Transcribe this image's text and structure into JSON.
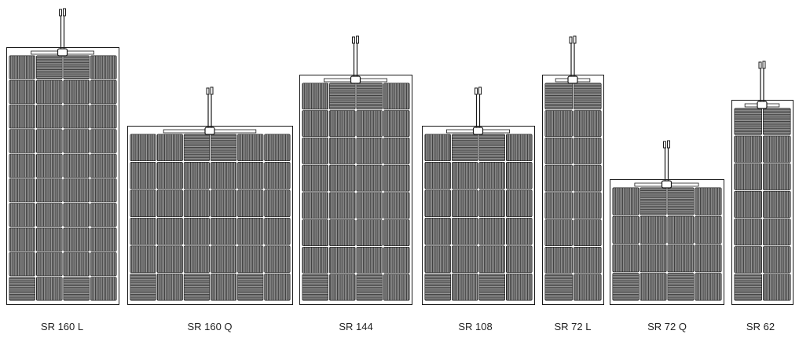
{
  "panels": [
    {
      "id": "sr-160-l",
      "label": "SR 160 L",
      "columns": 4,
      "rows": 10
    },
    {
      "id": "sr-160-q",
      "label": "SR 160 Q",
      "columns": 6,
      "rows": 6
    },
    {
      "id": "sr-144",
      "label": "SR 144",
      "columns": 4,
      "rows": 8
    },
    {
      "id": "sr-108",
      "label": "SR 108",
      "columns": 4,
      "rows": 6
    },
    {
      "id": "sr-72-l",
      "label": "SR 72 L",
      "columns": 2,
      "rows": 8
    },
    {
      "id": "sr-72-q",
      "label": "SR 72 Q",
      "columns": 4,
      "rows": 4
    },
    {
      "id": "sr-62",
      "label": "SR 62",
      "columns": 2,
      "rows": 7
    }
  ],
  "colors": {
    "cell_fill": "#9a9a9a",
    "cell_line": "#3a3a3a",
    "frame": "#1a1a1a",
    "background": "#ffffff"
  }
}
